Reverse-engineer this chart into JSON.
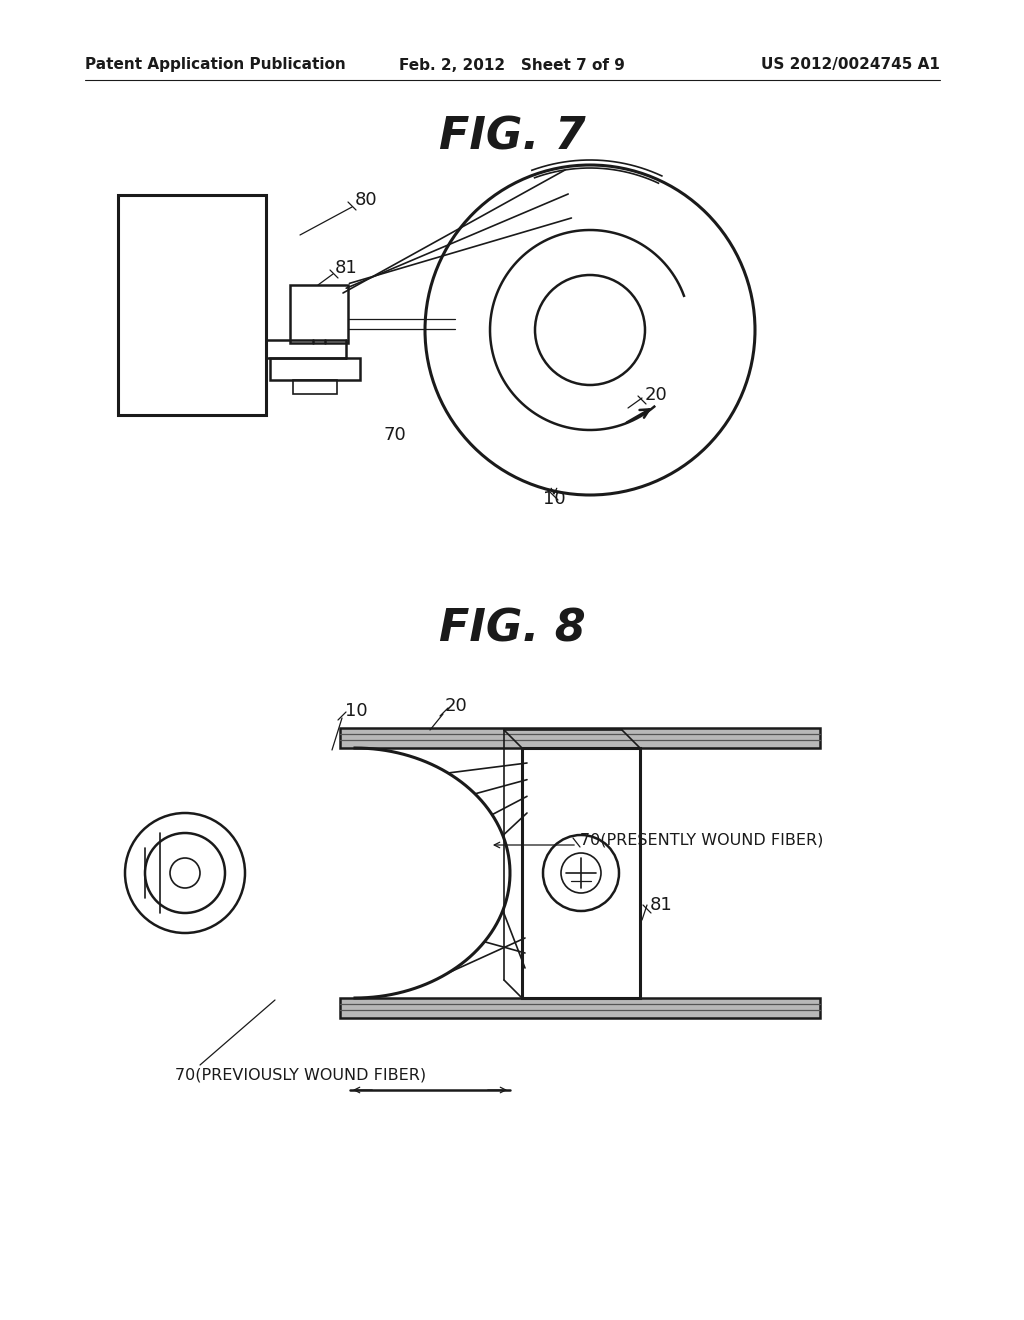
{
  "bg_color": "#ffffff",
  "line_color": "#1a1a1a",
  "header_left": "Patent Application Publication",
  "header_center": "Feb. 2, 2012   Sheet 7 of 9",
  "header_right": "US 2012/0024745 A1",
  "fig7_title": "FIG. 7",
  "fig8_title": "FIG. 8"
}
